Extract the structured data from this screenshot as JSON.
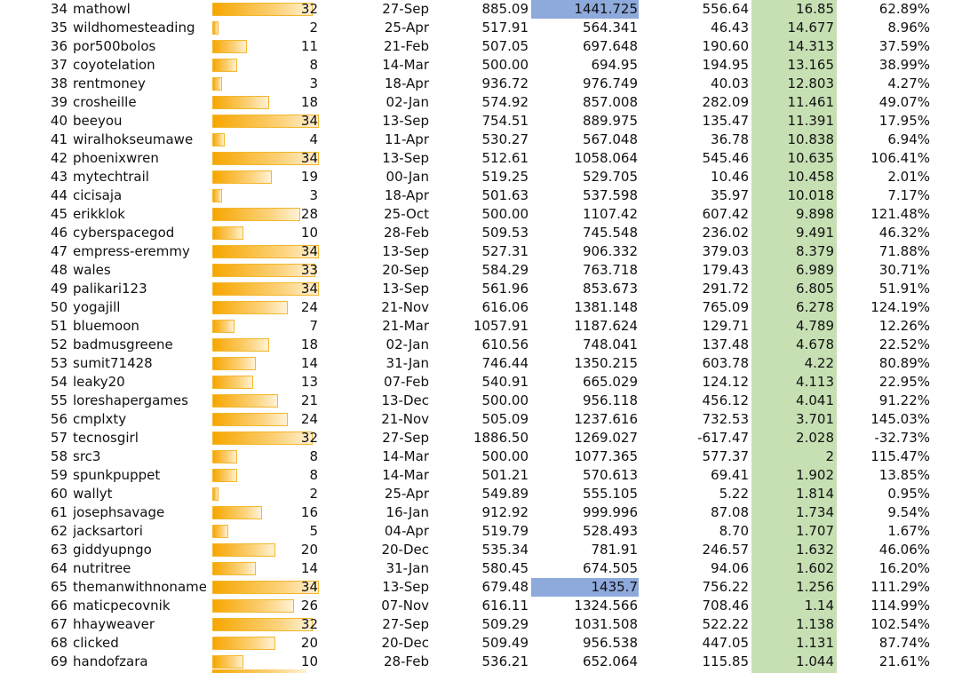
{
  "sheet": {
    "bar_max": 34,
    "colors": {
      "bar_start": "#f7a600",
      "bar_end": "#fff2d6",
      "bar_border": "#f3b72c",
      "highlight_blue": "#8ea9db",
      "highlight_green": "#c6e0b4"
    },
    "rows": [
      {
        "rank": "34",
        "name": "mathowl",
        "count": "32",
        "date": "27-Sep",
        "v1": "885.09",
        "v2": "1441.725",
        "v2_hl": true,
        "v3": "556.64",
        "v4": "16.85",
        "v5": "62.89%"
      },
      {
        "rank": "35",
        "name": "wildhomesteading",
        "count": "2",
        "date": "25-Apr",
        "v1": "517.91",
        "v2": "564.341",
        "v3": "46.43",
        "v4": "14.677",
        "v5": "8.96%"
      },
      {
        "rank": "36",
        "name": "por500bolos",
        "count": "11",
        "date": "21-Feb",
        "v1": "507.05",
        "v2": "697.648",
        "v3": "190.60",
        "v4": "14.313",
        "v5": "37.59%"
      },
      {
        "rank": "37",
        "name": "coyotelation",
        "count": "8",
        "date": "14-Mar",
        "v1": "500.00",
        "v2": "694.95",
        "v3": "194.95",
        "v4": "13.165",
        "v5": "38.99%"
      },
      {
        "rank": "38",
        "name": "rentmoney",
        "count": "3",
        "date": "18-Apr",
        "v1": "936.72",
        "v2": "976.749",
        "v3": "40.03",
        "v4": "12.803",
        "v5": "4.27%"
      },
      {
        "rank": "39",
        "name": "crosheille",
        "count": "18",
        "date": "02-Jan",
        "v1": "574.92",
        "v2": "857.008",
        "v3": "282.09",
        "v4": "11.461",
        "v5": "49.07%"
      },
      {
        "rank": "40",
        "name": "beeyou",
        "count": "34",
        "date": "13-Sep",
        "v1": "754.51",
        "v2": "889.975",
        "v3": "135.47",
        "v4": "11.391",
        "v5": "17.95%"
      },
      {
        "rank": "41",
        "name": "wiralhokseumawe",
        "count": "4",
        "date": "11-Apr",
        "v1": "530.27",
        "v2": "567.048",
        "v3": "36.78",
        "v4": "10.838",
        "v5": "6.94%"
      },
      {
        "rank": "42",
        "name": "phoenixwren",
        "count": "34",
        "date": "13-Sep",
        "v1": "512.61",
        "v2": "1058.064",
        "v3": "545.46",
        "v4": "10.635",
        "v5": "106.41%"
      },
      {
        "rank": "43",
        "name": "mytechtrail",
        "count": "19",
        "date": "00-Jan",
        "v1": "519.25",
        "v2": "529.705",
        "v3": "10.46",
        "v4": "10.458",
        "v5": "2.01%"
      },
      {
        "rank": "44",
        "name": "cicisaja",
        "count": "3",
        "date": "18-Apr",
        "v1": "501.63",
        "v2": "537.598",
        "v3": "35.97",
        "v4": "10.018",
        "v5": "7.17%"
      },
      {
        "rank": "45",
        "name": "erikklok",
        "count": "28",
        "date": "25-Oct",
        "v1": "500.00",
        "v2": "1107.42",
        "v3": "607.42",
        "v4": "9.898",
        "v5": "121.48%"
      },
      {
        "rank": "46",
        "name": "cyberspacegod",
        "count": "10",
        "date": "28-Feb",
        "v1": "509.53",
        "v2": "745.548",
        "v3": "236.02",
        "v4": "9.491",
        "v5": "46.32%"
      },
      {
        "rank": "47",
        "name": "empress-eremmy",
        "count": "34",
        "date": "13-Sep",
        "v1": "527.31",
        "v2": "906.332",
        "v3": "379.03",
        "v4": "8.379",
        "v5": "71.88%"
      },
      {
        "rank": "48",
        "name": "wales",
        "count": "33",
        "date": "20-Sep",
        "v1": "584.29",
        "v2": "763.718",
        "v3": "179.43",
        "v4": "6.989",
        "v5": "30.71%"
      },
      {
        "rank": "49",
        "name": "palikari123",
        "count": "34",
        "date": "13-Sep",
        "v1": "561.96",
        "v2": "853.673",
        "v3": "291.72",
        "v4": "6.805",
        "v5": "51.91%"
      },
      {
        "rank": "50",
        "name": "yogajill",
        "count": "24",
        "date": "21-Nov",
        "v1": "616.06",
        "v2": "1381.148",
        "v3": "765.09",
        "v4": "6.278",
        "v5": "124.19%"
      },
      {
        "rank": "51",
        "name": "bluemoon",
        "count": "7",
        "date": "21-Mar",
        "v1": "1057.91",
        "v2": "1187.624",
        "v3": "129.71",
        "v4": "4.789",
        "v5": "12.26%"
      },
      {
        "rank": "52",
        "name": "badmusgreene",
        "count": "18",
        "date": "02-Jan",
        "v1": "610.56",
        "v2": "748.041",
        "v3": "137.48",
        "v4": "4.678",
        "v5": "22.52%"
      },
      {
        "rank": "53",
        "name": "sumit71428",
        "count": "14",
        "date": "31-Jan",
        "v1": "746.44",
        "v2": "1350.215",
        "v3": "603.78",
        "v4": "4.22",
        "v5": "80.89%"
      },
      {
        "rank": "54",
        "name": "leaky20",
        "count": "13",
        "date": "07-Feb",
        "v1": "540.91",
        "v2": "665.029",
        "v3": "124.12",
        "v4": "4.113",
        "v5": "22.95%"
      },
      {
        "rank": "55",
        "name": "loreshapergames",
        "count": "21",
        "date": "13-Dec",
        "v1": "500.00",
        "v2": "956.118",
        "v3": "456.12",
        "v4": "4.041",
        "v5": "91.22%"
      },
      {
        "rank": "56",
        "name": "cmplxty",
        "count": "24",
        "date": "21-Nov",
        "v1": "505.09",
        "v2": "1237.616",
        "v3": "732.53",
        "v4": "3.701",
        "v5": "145.03%"
      },
      {
        "rank": "57",
        "name": "tecnosgirl",
        "count": "32",
        "date": "27-Sep",
        "v1": "1886.50",
        "v2": "1269.027",
        "v3": "-617.47",
        "v4": "2.028",
        "v5": "-32.73%"
      },
      {
        "rank": "58",
        "name": "src3",
        "count": "8",
        "date": "14-Mar",
        "v1": "500.00",
        "v2": "1077.365",
        "v3": "577.37",
        "v4": "2",
        "v5": "115.47%"
      },
      {
        "rank": "59",
        "name": "spunkpuppet",
        "count": "8",
        "date": "14-Mar",
        "v1": "501.21",
        "v2": "570.613",
        "v3": "69.41",
        "v4": "1.902",
        "v5": "13.85%"
      },
      {
        "rank": "60",
        "name": "wallyt",
        "count": "2",
        "date": "25-Apr",
        "v1": "549.89",
        "v2": "555.105",
        "v3": "5.22",
        "v4": "1.814",
        "v5": "0.95%"
      },
      {
        "rank": "61",
        "name": "josephsavage",
        "count": "16",
        "date": "16-Jan",
        "v1": "912.92",
        "v2": "999.996",
        "v3": "87.08",
        "v4": "1.734",
        "v5": "9.54%"
      },
      {
        "rank": "62",
        "name": "jacksartori",
        "count": "5",
        "date": "04-Apr",
        "v1": "519.79",
        "v2": "528.493",
        "v3": "8.70",
        "v4": "1.707",
        "v5": "1.67%"
      },
      {
        "rank": "63",
        "name": "giddyupngo",
        "count": "20",
        "date": "20-Dec",
        "v1": "535.34",
        "v2": "781.91",
        "v3": "246.57",
        "v4": "1.632",
        "v5": "46.06%"
      },
      {
        "rank": "64",
        "name": "nutritree",
        "count": "14",
        "date": "31-Jan",
        "v1": "580.45",
        "v2": "674.505",
        "v3": "94.06",
        "v4": "1.602",
        "v5": "16.20%"
      },
      {
        "rank": "65",
        "name": "themanwithnoname",
        "count": "34",
        "date": "13-Sep",
        "v1": "679.48",
        "v2": "1435.7",
        "v2_hl": true,
        "v3": "756.22",
        "v4": "1.256",
        "v5": "111.29%"
      },
      {
        "rank": "66",
        "name": "maticpecovnik",
        "count": "26",
        "date": "07-Nov",
        "v1": "616.11",
        "v2": "1324.566",
        "v3": "708.46",
        "v4": "1.14",
        "v5": "114.99%"
      },
      {
        "rank": "67",
        "name": "hhayweaver",
        "count": "32",
        "date": "27-Sep",
        "v1": "509.29",
        "v2": "1031.508",
        "v3": "522.22",
        "v4": "1.138",
        "v5": "102.54%"
      },
      {
        "rank": "68",
        "name": "clicked",
        "count": "20",
        "date": "20-Dec",
        "v1": "509.49",
        "v2": "956.538",
        "v3": "447.05",
        "v4": "1.131",
        "v5": "87.74%"
      },
      {
        "rank": "69",
        "name": "handofzara",
        "count": "10",
        "date": "28-Feb",
        "v1": "536.21",
        "v2": "652.064",
        "v3": "115.85",
        "v4": "1.044",
        "v5": "21.61%"
      }
    ]
  }
}
